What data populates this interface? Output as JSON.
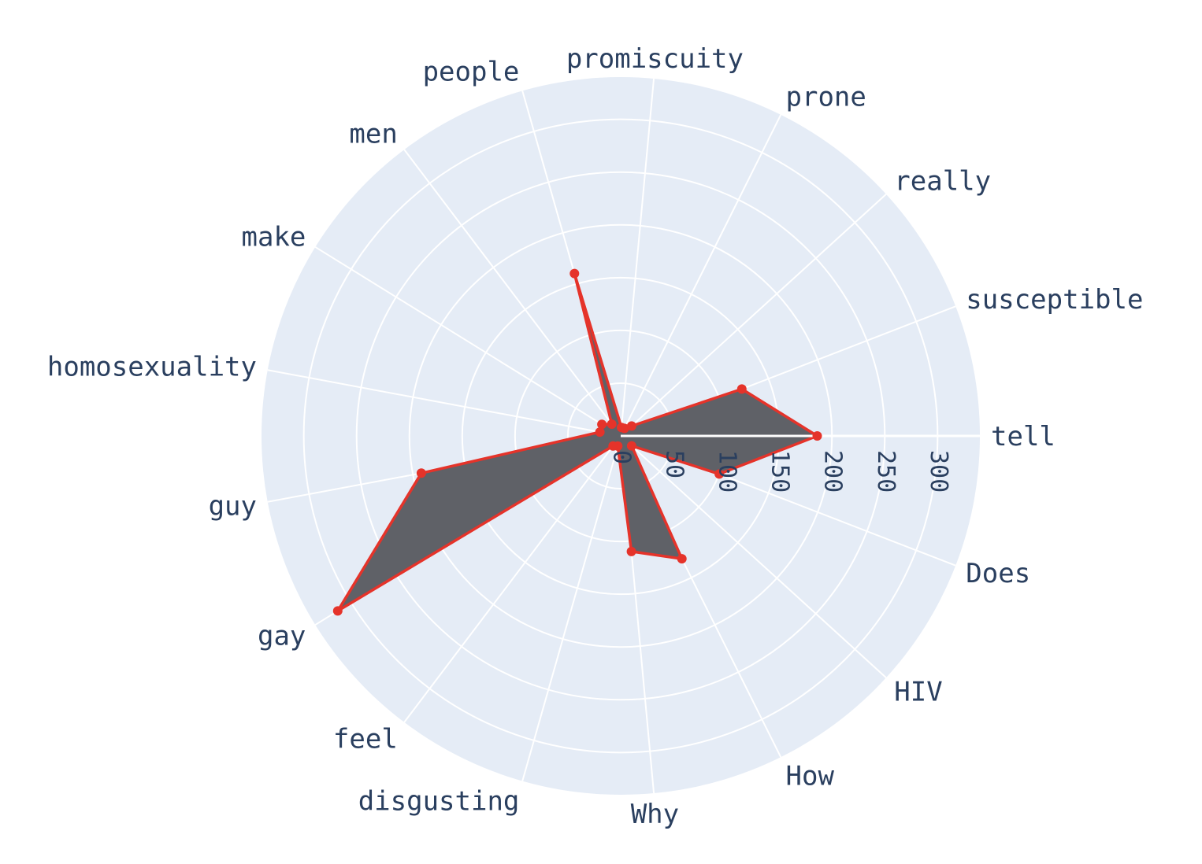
{
  "chart_data": {
    "type": "radar",
    "categories": [
      "tell",
      "Does",
      "HIV",
      "How",
      "Why",
      "disgusting",
      "feel",
      "gay",
      "guy",
      "homosexuality",
      "make",
      "men",
      "people",
      "promiscuity",
      "prone",
      "really",
      "susceptible"
    ],
    "values": [
      186,
      100,
      14,
      130,
      110,
      10,
      12,
      315,
      192,
      20,
      21,
      14,
      160,
      8,
      8,
      14,
      123
    ],
    "radial_ticks": [
      0,
      50,
      100,
      150,
      200,
      250,
      300
    ],
    "radial_range": [
      0,
      340
    ],
    "grid": true,
    "colors": {
      "background": "#e5ecf6",
      "grid": "#ffffff",
      "fill": "#5f6167",
      "line": "#e5332a",
      "text": "#2a3f5f"
    }
  }
}
